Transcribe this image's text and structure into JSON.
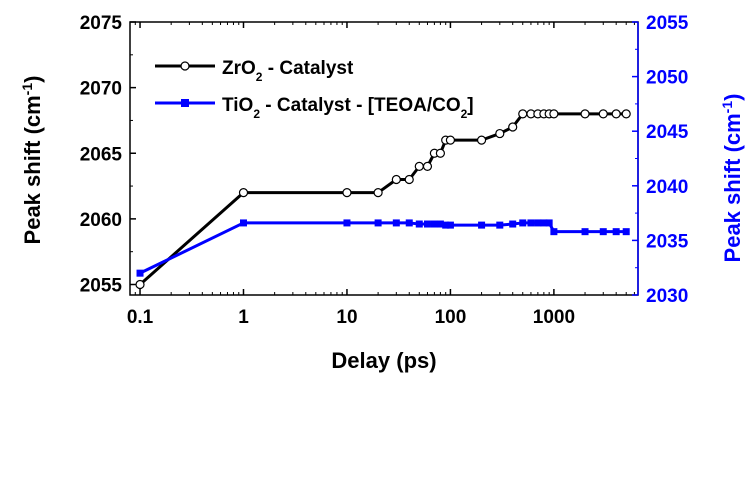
{
  "chart_data": {
    "type": "line",
    "xscale": "log",
    "xlim": [
      0.08,
      6500
    ],
    "xlabel": "Delay (ps)",
    "xticks": [
      0.1,
      1,
      10,
      100,
      1000
    ],
    "xtick_labels": [
      "0.1",
      "1",
      "10",
      "100",
      "1000"
    ],
    "y_left": {
      "label": "Peak shift (cm-1)",
      "ylim": [
        2054.2,
        2075
      ],
      "ticks": [
        2055,
        2060,
        2065,
        2070,
        2075
      ],
      "tick_labels": [
        "2055",
        "2060",
        "2065",
        "2070",
        "2075"
      ],
      "color": "#000000"
    },
    "y_right": {
      "label": "Peak shift (cm-1)",
      "ylim": [
        2030,
        2055
      ],
      "ticks": [
        2030,
        2035,
        2040,
        2045,
        2050,
        2055
      ],
      "tick_labels": [
        "2030",
        "2035",
        "2040",
        "2045",
        "2050",
        "2055"
      ],
      "color": "#0000ff"
    },
    "legend_position": "top-left",
    "grid": false,
    "series": [
      {
        "name": "ZrO2 - Catalyst",
        "axis": "left",
        "color": "#000000",
        "marker": "open-circle",
        "x": [
          0.1,
          1,
          10,
          20,
          30,
          40,
          50,
          60,
          70,
          80,
          90,
          100,
          200,
          300,
          400,
          500,
          600,
          700,
          800,
          900,
          1000,
          2000,
          3000,
          4000,
          5000
        ],
        "y": [
          2055,
          2062,
          2062,
          2062,
          2063,
          2063,
          2064,
          2064,
          2065,
          2065,
          2066,
          2066,
          2066,
          2066.5,
          2067,
          2068,
          2068,
          2068,
          2068,
          2068,
          2068,
          2068,
          2068,
          2068,
          2068
        ]
      },
      {
        "name": "TiO2 - Catalyst - [TEOA/CO2]",
        "axis": "right",
        "color": "#0000ff",
        "marker": "filled-square",
        "x": [
          0.1,
          1,
          10,
          20,
          30,
          40,
          50,
          60,
          70,
          80,
          90,
          100,
          200,
          300,
          400,
          500,
          600,
          700,
          800,
          900,
          1000,
          2000,
          3000,
          4000,
          5000
        ],
        "y": [
          2032,
          2036.6,
          2036.6,
          2036.6,
          2036.6,
          2036.6,
          2036.5,
          2036.5,
          2036.5,
          2036.5,
          2036.4,
          2036.4,
          2036.4,
          2036.4,
          2036.5,
          2036.6,
          2036.6,
          2036.6,
          2036.6,
          2036.6,
          2035.8,
          2035.8,
          2035.8,
          2035.8,
          2035.8
        ]
      }
    ]
  }
}
